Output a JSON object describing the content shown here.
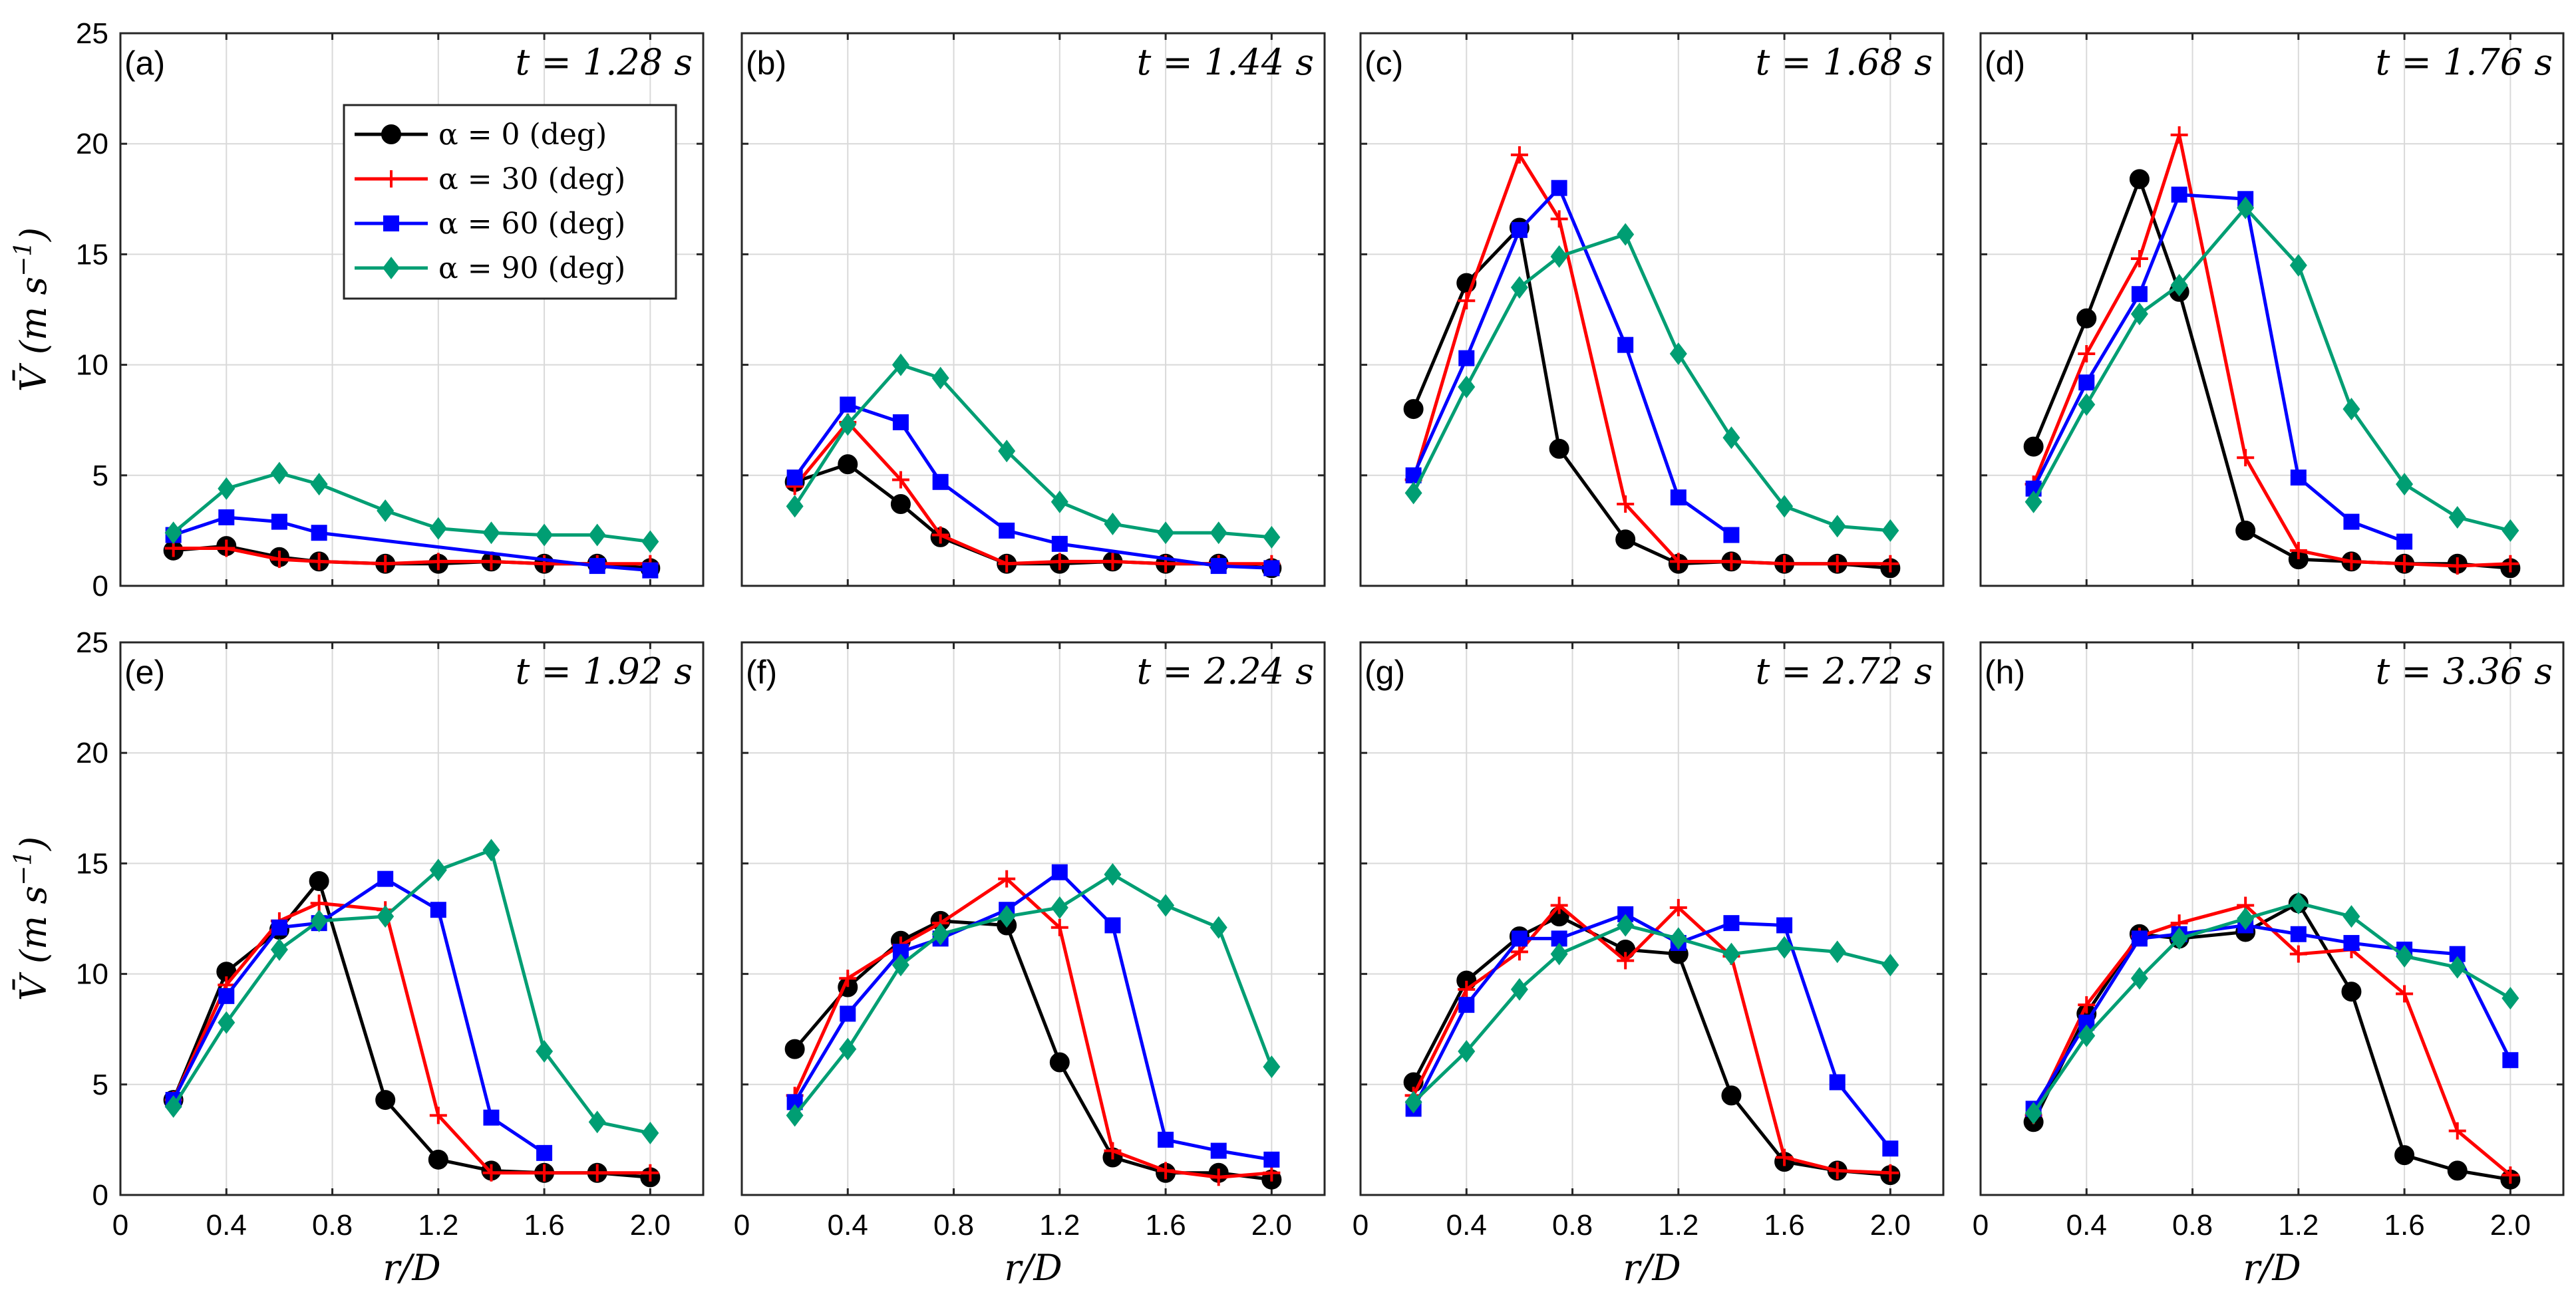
{
  "figure": {
    "x_label": "r/D",
    "y_label": "V̄ (m s",
    "y_label_exp": "−1",
    "y_label_close": ")"
  },
  "chart_data": {
    "type": "line",
    "xlabel": "r/D",
    "ylabel": "V̄ (m s⁻¹)",
    "xlim": [
      0,
      2.2
    ],
    "ylim": [
      0,
      25
    ],
    "xticks": [
      0,
      0.4,
      0.8,
      1.2,
      1.6,
      2.0
    ],
    "xtick_labels": [
      "0",
      "0.4",
      "0.8",
      "1.2",
      "1.6",
      "2.0"
    ],
    "yticks": [
      0,
      5,
      10,
      15,
      20,
      25
    ],
    "ytick_labels": [
      "0",
      "5",
      "10",
      "15",
      "20",
      "25"
    ],
    "legend": [
      {
        "label": "α = 0 (deg)",
        "color": "#000000",
        "marker": "circle"
      },
      {
        "label": "α = 30 (deg)",
        "color": "#ff0000",
        "marker": "plus"
      },
      {
        "label": "α = 60 (deg)",
        "color": "#0000ff",
        "marker": "square"
      },
      {
        "label": "α = 90 (deg)",
        "color": "#009e73",
        "marker": "diamond"
      }
    ],
    "panels": [
      {
        "label": "(a)",
        "time": "t = 1.28 s",
        "series": [
          {
            "x": [
              0.2,
              0.4,
              0.6,
              0.75,
              1.0,
              1.2,
              1.4,
              1.6,
              1.8,
              2.0
            ],
            "y": [
              1.6,
              1.8,
              1.3,
              1.1,
              1.0,
              1.0,
              1.1,
              1.0,
              1.0,
              0.8
            ]
          },
          {
            "x": [
              0.2,
              0.4,
              0.6,
              0.75,
              1.0,
              1.2,
              1.4,
              1.6,
              1.8,
              2.0
            ],
            "y": [
              1.7,
              1.7,
              1.2,
              1.1,
              1.0,
              1.1,
              1.1,
              1.0,
              1.0,
              1.0
            ]
          },
          {
            "x": [
              0.2,
              0.4,
              0.6,
              0.75,
              1.8,
              2.0
            ],
            "y": [
              2.3,
              3.1,
              2.9,
              2.4,
              0.9,
              0.7
            ]
          },
          {
            "x": [
              0.2,
              0.4,
              0.6,
              0.75,
              1.0,
              1.2,
              1.4,
              1.6,
              1.8,
              2.0
            ],
            "y": [
              2.4,
              4.4,
              5.1,
              4.6,
              3.4,
              2.6,
              2.4,
              2.3,
              2.3,
              2.0
            ]
          }
        ]
      },
      {
        "label": "(b)",
        "time": "t = 1.44 s",
        "series": [
          {
            "x": [
              0.2,
              0.4,
              0.6,
              0.75,
              1.0,
              1.2,
              1.4,
              1.6,
              1.8,
              2.0
            ],
            "y": [
              4.7,
              5.5,
              3.7,
              2.2,
              1.0,
              1.0,
              1.1,
              1.0,
              1.0,
              0.8
            ]
          },
          {
            "x": [
              0.2,
              0.4,
              0.6,
              0.75,
              1.0,
              1.2,
              1.4,
              1.6,
              1.8,
              2.0
            ],
            "y": [
              4.5,
              7.4,
              4.8,
              2.3,
              1.0,
              1.1,
              1.1,
              1.0,
              1.0,
              1.0
            ]
          },
          {
            "x": [
              0.2,
              0.4,
              0.6,
              0.75,
              1.0,
              1.2,
              1.8,
              2.0
            ],
            "y": [
              4.9,
              8.2,
              7.4,
              4.7,
              2.5,
              1.9,
              0.9,
              0.8
            ]
          },
          {
            "x": [
              0.2,
              0.4,
              0.6,
              0.75,
              1.0,
              1.2,
              1.4,
              1.6,
              1.8,
              2.0
            ],
            "y": [
              3.6,
              7.3,
              10.0,
              9.4,
              6.1,
              3.8,
              2.8,
              2.4,
              2.4,
              2.2
            ]
          }
        ]
      },
      {
        "label": "(c)",
        "time": "t = 1.68 s",
        "series": [
          {
            "x": [
              0.2,
              0.4,
              0.6,
              0.75,
              1.0,
              1.2,
              1.4,
              1.6,
              1.8,
              2.0
            ],
            "y": [
              8.0,
              13.7,
              16.2,
              6.2,
              2.1,
              1.0,
              1.1,
              1.0,
              1.0,
              0.8
            ]
          },
          {
            "x": [
              0.2,
              0.4,
              0.6,
              0.75,
              1.0,
              1.2,
              1.4,
              1.6,
              1.8,
              2.0
            ],
            "y": [
              4.8,
              12.9,
              19.5,
              16.6,
              3.7,
              1.1,
              1.1,
              1.0,
              1.0,
              1.0
            ]
          },
          {
            "x": [
              0.2,
              0.4,
              0.6,
              0.75,
              1.0,
              1.2,
              1.4
            ],
            "y": [
              5.0,
              10.3,
              16.1,
              18.0,
              10.9,
              4.0,
              2.3
            ]
          },
          {
            "x": [
              0.2,
              0.4,
              0.6,
              0.75,
              1.0,
              1.2,
              1.4,
              1.6,
              1.8,
              2.0
            ],
            "y": [
              4.2,
              9.0,
              13.5,
              14.9,
              15.9,
              10.5,
              6.7,
              3.6,
              2.7,
              2.5
            ]
          }
        ]
      },
      {
        "label": "(d)",
        "time": "t = 1.76 s",
        "series": [
          {
            "x": [
              0.2,
              0.4,
              0.6,
              0.75,
              1.0,
              1.2,
              1.4,
              1.6,
              1.8,
              2.0
            ],
            "y": [
              6.3,
              12.1,
              18.4,
              13.3,
              2.5,
              1.2,
              1.1,
              1.0,
              1.0,
              0.8
            ]
          },
          {
            "x": [
              0.2,
              0.4,
              0.6,
              0.75,
              1.0,
              1.2,
              1.4,
              1.6,
              1.8,
              2.0
            ],
            "y": [
              4.6,
              10.5,
              14.8,
              20.4,
              5.8,
              1.6,
              1.1,
              1.0,
              0.9,
              1.0
            ]
          },
          {
            "x": [
              0.2,
              0.4,
              0.6,
              0.75,
              1.0,
              1.2,
              1.4,
              1.6
            ],
            "y": [
              4.4,
              9.2,
              13.2,
              17.7,
              17.5,
              4.9,
              2.9,
              2.0
            ]
          },
          {
            "x": [
              0.2,
              0.4,
              0.6,
              0.75,
              1.0,
              1.2,
              1.4,
              1.6,
              1.8,
              2.0
            ],
            "y": [
              3.8,
              8.2,
              12.3,
              13.6,
              17.1,
              14.5,
              8.0,
              4.6,
              3.1,
              2.5
            ]
          }
        ]
      },
      {
        "label": "(e)",
        "time": "t = 1.92 s",
        "series": [
          {
            "x": [
              0.2,
              0.4,
              0.6,
              0.75,
              1.0,
              1.2,
              1.4,
              1.6,
              1.8,
              2.0
            ],
            "y": [
              4.3,
              10.1,
              12.0,
              14.2,
              4.3,
              1.6,
              1.1,
              1.0,
              1.0,
              0.8
            ]
          },
          {
            "x": [
              0.2,
              0.4,
              0.6,
              0.75,
              1.0,
              1.2,
              1.4,
              1.6,
              1.8,
              2.0
            ],
            "y": [
              4.3,
              9.5,
              12.4,
              13.2,
              12.9,
              3.6,
              1.0,
              1.0,
              1.0,
              1.0
            ]
          },
          {
            "x": [
              0.2,
              0.4,
              0.6,
              0.75,
              1.0,
              1.2,
              1.4,
              1.6
            ],
            "y": [
              4.3,
              9.0,
              12.1,
              12.3,
              14.3,
              12.9,
              3.5,
              1.9
            ]
          },
          {
            "x": [
              0.2,
              0.4,
              0.6,
              0.75,
              1.0,
              1.2,
              1.4,
              1.6,
              1.8,
              2.0
            ],
            "y": [
              4.0,
              7.8,
              11.1,
              12.4,
              12.6,
              14.7,
              15.6,
              6.5,
              3.3,
              2.8
            ]
          }
        ]
      },
      {
        "label": "(f)",
        "time": "t = 2.24 s",
        "series": [
          {
            "x": [
              0.2,
              0.4,
              0.6,
              0.75,
              1.0,
              1.2,
              1.4,
              1.6,
              1.8,
              2.0
            ],
            "y": [
              6.6,
              9.4,
              11.5,
              12.4,
              12.2,
              6.0,
              1.7,
              1.0,
              1.0,
              0.7
            ]
          },
          {
            "x": [
              0.2,
              0.4,
              0.6,
              0.75,
              1.0,
              1.2,
              1.4,
              1.6,
              1.8,
              2.0
            ],
            "y": [
              4.5,
              9.8,
              11.3,
              12.3,
              14.3,
              12.1,
              2.0,
              1.1,
              0.8,
              1.0
            ]
          },
          {
            "x": [
              0.2,
              0.4,
              0.6,
              0.75,
              1.0,
              1.2,
              1.4,
              1.6,
              1.8,
              2.0
            ],
            "y": [
              4.2,
              8.2,
              11.0,
              11.6,
              12.9,
              14.6,
              12.2,
              2.5,
              2.0,
              1.6
            ]
          },
          {
            "x": [
              0.2,
              0.4,
              0.6,
              0.75,
              1.0,
              1.2,
              1.4,
              1.6,
              1.8,
              2.0
            ],
            "y": [
              3.6,
              6.6,
              10.4,
              11.8,
              12.6,
              13.0,
              14.5,
              13.1,
              12.1,
              5.8
            ]
          }
        ]
      },
      {
        "label": "(g)",
        "time": "t = 2.72 s",
        "series": [
          {
            "x": [
              0.2,
              0.4,
              0.6,
              0.75,
              1.0,
              1.2,
              1.4,
              1.6,
              1.8,
              2.0
            ],
            "y": [
              5.1,
              9.7,
              11.7,
              12.6,
              11.1,
              10.9,
              4.5,
              1.5,
              1.1,
              0.9
            ]
          },
          {
            "x": [
              0.2,
              0.4,
              0.6,
              0.75,
              1.0,
              1.2,
              1.4,
              1.6,
              1.8,
              2.0
            ],
            "y": [
              4.5,
              9.3,
              11.0,
              13.1,
              10.6,
              13.0,
              10.8,
              1.7,
              1.1,
              1.0
            ]
          },
          {
            "x": [
              0.2,
              0.4,
              0.6,
              0.75,
              1.0,
              1.2,
              1.4,
              1.6,
              1.8,
              2.0
            ],
            "y": [
              3.9,
              8.6,
              11.6,
              11.6,
              12.7,
              11.4,
              12.3,
              12.2,
              5.1,
              2.1
            ]
          },
          {
            "x": [
              0.2,
              0.4,
              0.6,
              0.75,
              1.0,
              1.2,
              1.4,
              1.6,
              1.8,
              2.0
            ],
            "y": [
              4.2,
              6.5,
              9.3,
              10.9,
              12.2,
              11.6,
              10.9,
              11.2,
              11.0,
              10.4
            ]
          }
        ]
      },
      {
        "label": "(h)",
        "time": "t = 3.36 s",
        "series": [
          {
            "x": [
              0.2,
              0.4,
              0.6,
              0.75,
              1.0,
              1.2,
              1.4,
              1.6,
              1.8,
              2.0
            ],
            "y": [
              3.3,
              8.2,
              11.8,
              11.6,
              11.9,
              13.2,
              9.2,
              1.8,
              1.1,
              0.7
            ]
          },
          {
            "x": [
              0.2,
              0.4,
              0.6,
              0.75,
              1.0,
              1.2,
              1.4,
              1.6,
              1.8,
              2.0
            ],
            "y": [
              3.6,
              8.6,
              11.7,
              12.3,
              13.1,
              10.9,
              11.1,
              9.1,
              2.9,
              0.9
            ]
          },
          {
            "x": [
              0.2,
              0.4,
              0.6,
              0.75,
              1.0,
              1.2,
              1.4,
              1.6,
              1.8,
              2.0
            ],
            "y": [
              3.9,
              7.8,
              11.6,
              11.8,
              12.2,
              11.8,
              11.4,
              11.1,
              10.9,
              6.1
            ]
          },
          {
            "x": [
              0.2,
              0.4,
              0.6,
              0.75,
              1.0,
              1.2,
              1.4,
              1.6,
              1.8,
              2.0
            ],
            "y": [
              3.7,
              7.2,
              9.8,
              11.6,
              12.5,
              13.2,
              12.6,
              10.8,
              10.3,
              8.9
            ]
          }
        ]
      }
    ]
  }
}
